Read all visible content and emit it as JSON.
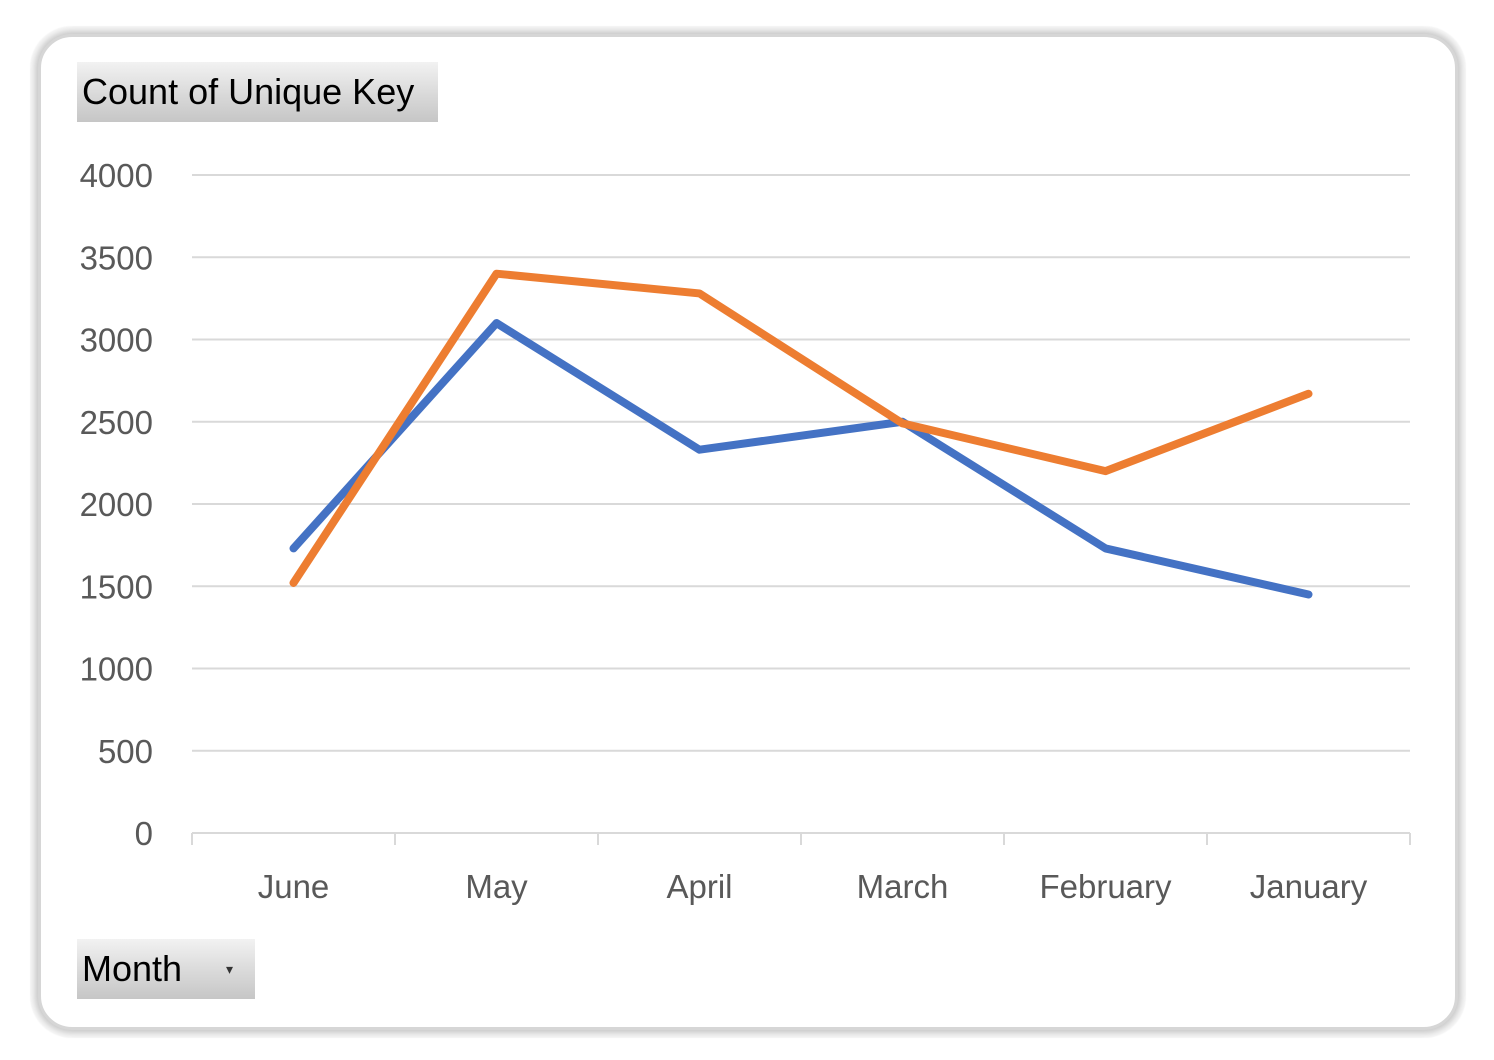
{
  "value_field_button": {
    "label": "Count of Unique Key"
  },
  "axis_field_button": {
    "label": "Month",
    "arrow": "▾"
  },
  "colors": {
    "series1": "#4472C4",
    "series2": "#ED7D31",
    "grid": "#D9D9D9",
    "axis": "#D9D9D9",
    "tick_text": "#595959"
  },
  "chart_data": {
    "type": "line",
    "categories": [
      "June",
      "May",
      "April",
      "March",
      "February",
      "January"
    ],
    "series": [
      {
        "values": [
          1730,
          3100,
          2330,
          2500,
          1730,
          1450
        ],
        "color": "#4472C4"
      },
      {
        "values": [
          1520,
          3400,
          3280,
          2490,
          2200,
          2670
        ],
        "color": "#ED7D31"
      }
    ],
    "ylim": [
      0,
      4000
    ],
    "yticks": [
      0,
      500,
      1000,
      1500,
      2000,
      2500,
      3000,
      3500,
      4000
    ],
    "grid": true,
    "legend": "none"
  }
}
